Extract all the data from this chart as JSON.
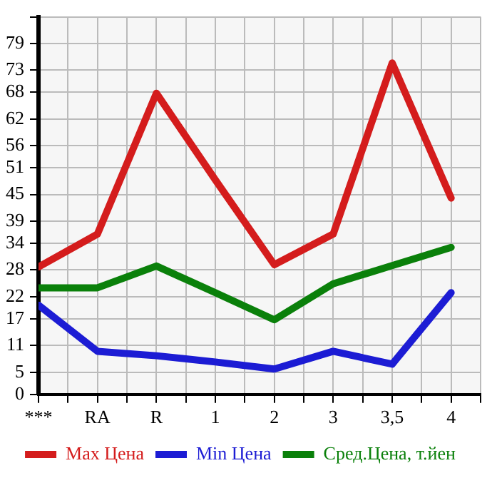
{
  "chart_data": {
    "type": "line",
    "categories": [
      "***",
      "RA",
      "R",
      "1",
      "2",
      "3",
      "3,5",
      "4"
    ],
    "series": [
      {
        "name": "Max Цена",
        "color": "#d41c1c",
        "values": [
          28.7,
          36.1,
          67.8,
          48.3,
          29.2,
          36.1,
          74.6,
          44.2
        ]
      },
      {
        "name": "Min Цена",
        "color": "#1c1cd4",
        "values": [
          20.1,
          9.7,
          8.7,
          7.3,
          5.7,
          9.7,
          6.8,
          22.9
        ]
      },
      {
        "name": "Сред.Цена, т.йен",
        "color": "#0a800a",
        "values": [
          24.0,
          24.0,
          28.9,
          22.9,
          16.8,
          24.9,
          29.0,
          33.1
        ]
      }
    ],
    "ylim": [
      0,
      85
    ],
    "yticks": [
      0,
      5,
      11,
      17,
      22,
      28,
      34,
      39,
      45,
      51,
      56,
      62,
      68,
      73,
      79,
      {
        "value": 85,
        "label": null
      }
    ],
    "grid": true,
    "legend": "bottom",
    "marker": "none",
    "line_style": "solid"
  }
}
